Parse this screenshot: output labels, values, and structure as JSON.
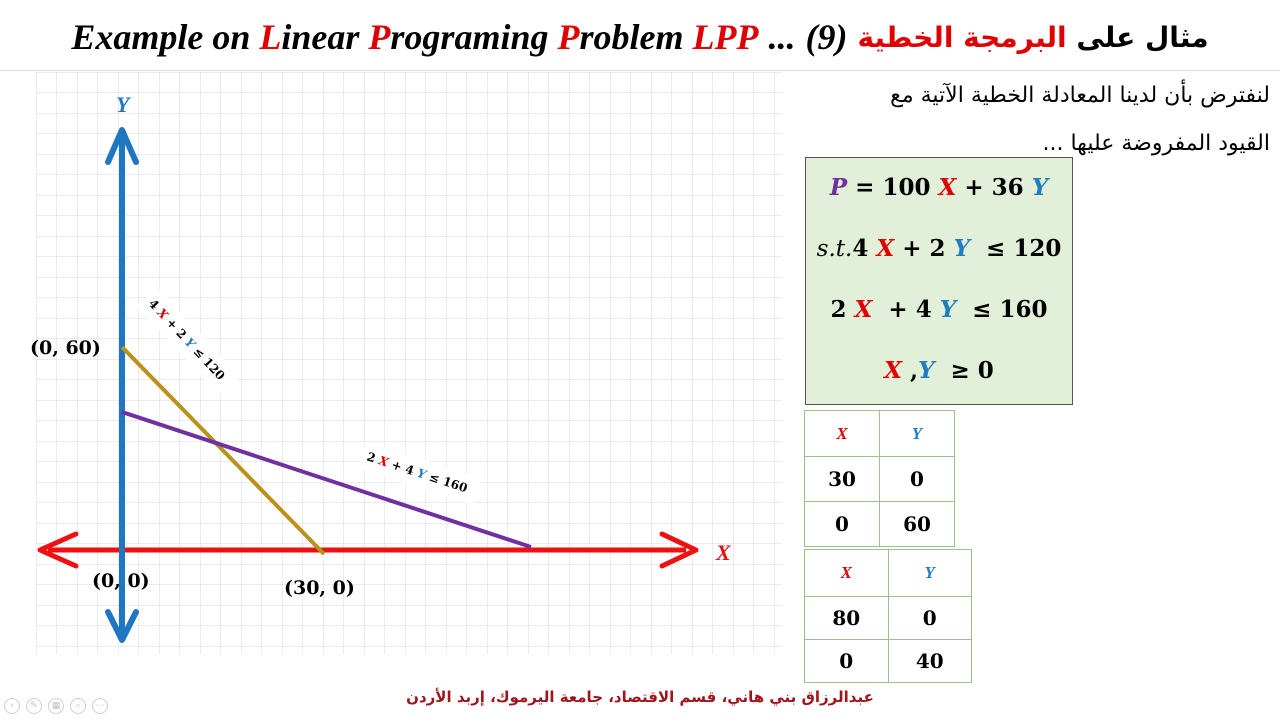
{
  "title": {
    "arabic_prefix": "مثال على",
    "arabic_highlight": "البرمجة الخطية",
    "number": "(9)",
    "dots": "...",
    "english_parts": [
      "Example on ",
      "L",
      "inear ",
      "P",
      "rograming ",
      "P",
      "roblem ",
      "LPP"
    ]
  },
  "description": {
    "line1": "لنفترض بأن لدينا المعادلة الخطية الآتية مع",
    "line2": "القيود المفروضة عليها ..."
  },
  "model": {
    "objective": {
      "lhs": "P",
      "equals": "=",
      "c1": "100",
      "x": "X",
      "plus": "+",
      "c2": "36",
      "y": "Y"
    },
    "c1": {
      "st": "s.t.",
      "a": "4",
      "x": "X",
      "plus": "+",
      "b": "2",
      "y": "Y",
      "rel": "≤",
      "rhs": "120"
    },
    "c2": {
      "a": "2",
      "x": "X",
      "plus": "+",
      "b": "4",
      "y": "Y",
      "rel": "≤",
      "rhs": "160"
    },
    "c3": {
      "x": "X",
      "comma": ",",
      "y": "Y",
      "rel": "≥",
      "rhs": "0"
    }
  },
  "table1": {
    "headers": [
      "X",
      "Y"
    ],
    "rows": [
      [
        "30",
        "0"
      ],
      [
        "0",
        "60"
      ]
    ]
  },
  "table2": {
    "headers": [
      "X",
      "Y"
    ],
    "rows": [
      [
        "80",
        "0"
      ],
      [
        "0",
        "40"
      ]
    ]
  },
  "graph": {
    "x_axis_label": "X",
    "y_axis_label": "Y",
    "points": [
      {
        "label": "(0, 60)"
      },
      {
        "label": "(0, 0)"
      },
      {
        "label": "(30, 0)"
      }
    ],
    "line1_label": {
      "a": "4",
      "x": "X",
      "plus": "+",
      "b": "2",
      "y": "Y",
      "rel": "≤",
      "rhs": "120"
    },
    "line2_label": {
      "a": "2",
      "x": "X",
      "plus": "+",
      "b": "4",
      "y": "Y",
      "rel": "≤",
      "rhs": "160"
    },
    "colors": {
      "x_axis": "#ee1111",
      "y_axis": "#1f77c2",
      "line1": "#b8921a",
      "line2": "#7030a0",
      "grid": "#d9d9d9"
    }
  },
  "footer": "عبدالرزاق بني هاني، قسم الاقتصاد، جامعة اليرموك، إربد الأردن",
  "player_controls": [
    "prev-icon",
    "pen-icon",
    "slides-icon",
    "zoom-icon",
    "more-icon"
  ]
}
